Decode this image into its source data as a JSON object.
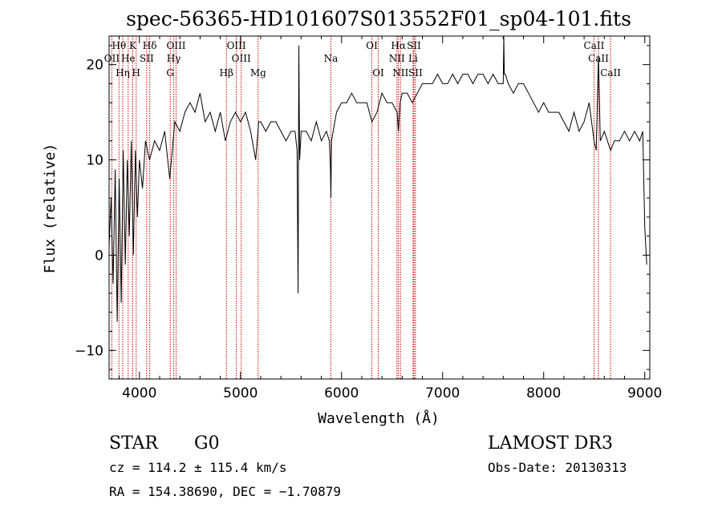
{
  "chart_data": {
    "type": "line",
    "title": "spec-56365-HD101607S013552F01_sp04-101.fits",
    "xlabel": "Wavelength (Å)",
    "ylabel": "Flux (relative)",
    "xlim": [
      3700,
      9050
    ],
    "ylim": [
      -13,
      23
    ],
    "x_ticks": [
      4000,
      5000,
      6000,
      7000,
      8000,
      9000
    ],
    "y_ticks": [
      -10,
      0,
      10,
      20
    ],
    "x_tick_labels": [
      "4000",
      "5000",
      "6000",
      "7000",
      "8000",
      "9000"
    ],
    "y_tick_labels": [
      "−10",
      "0",
      "10",
      "20"
    ],
    "series": [
      {
        "name": "flux",
        "x": [
          3700,
          3720,
          3740,
          3760,
          3780,
          3800,
          3820,
          3840,
          3860,
          3880,
          3900,
          3920,
          3940,
          3960,
          3980,
          4000,
          4030,
          4060,
          4100,
          4150,
          4200,
          4250,
          4300,
          4350,
          4400,
          4450,
          4500,
          4550,
          4600,
          4650,
          4700,
          4750,
          4800,
          4850,
          4900,
          4950,
          5000,
          5050,
          5100,
          5150,
          5180,
          5200,
          5250,
          5300,
          5350,
          5400,
          5450,
          5500,
          5540,
          5560,
          5570,
          5577,
          5585,
          5600,
          5650,
          5700,
          5750,
          5800,
          5850,
          5880,
          5890,
          5895,
          5900,
          5950,
          6000,
          6050,
          6100,
          6150,
          6200,
          6250,
          6300,
          6350,
          6400,
          6450,
          6500,
          6550,
          6563,
          6580,
          6600,
          6650,
          6700,
          6750,
          6800,
          6850,
          6900,
          6950,
          7000,
          7050,
          7100,
          7150,
          7200,
          7250,
          7300,
          7350,
          7400,
          7450,
          7500,
          7550,
          7600,
          7605,
          7610,
          7620,
          7650,
          7700,
          7750,
          7800,
          7850,
          7900,
          7950,
          8000,
          8050,
          8100,
          8150,
          8200,
          8250,
          8300,
          8350,
          8400,
          8450,
          8498,
          8520,
          8542,
          8560,
          8600,
          8662,
          8700,
          8750,
          8800,
          8850,
          8900,
          8950,
          8980,
          9000,
          9020
        ],
        "y": [
          1,
          6,
          -3,
          9,
          -7,
          8,
          -5,
          11,
          -1,
          10,
          2,
          12,
          0,
          11,
          4,
          10,
          7,
          12,
          10,
          12,
          11,
          13,
          8,
          14,
          13,
          15,
          16,
          15,
          17,
          14,
          15,
          13,
          15,
          12,
          14,
          15,
          14,
          15,
          13,
          10,
          14,
          14,
          13,
          14,
          14,
          13,
          12,
          13,
          13,
          11,
          -4,
          22,
          10,
          13,
          13,
          12,
          14,
          12,
          13,
          12,
          9,
          6,
          12,
          15,
          16,
          16,
          17,
          16,
          16,
          16,
          14,
          15,
          17,
          16,
          16,
          15,
          13,
          16,
          17,
          17,
          16,
          17,
          18,
          18,
          18,
          19,
          18,
          18,
          19,
          18,
          19,
          19,
          18,
          19,
          19,
          18,
          19,
          18,
          18,
          23,
          19,
          19,
          18,
          17,
          18,
          18,
          17,
          16,
          15,
          16,
          15,
          15,
          15,
          14,
          13,
          15,
          13,
          14,
          16,
          12,
          11,
          21,
          12,
          13,
          11,
          12,
          12,
          13,
          12,
          13,
          12,
          13,
          3,
          -1
        ]
      }
    ],
    "lines": [
      {
        "label": "Hθ",
        "x": 3798,
        "row": 0
      },
      {
        "label": "OII",
        "x": 3727,
        "row": 1
      },
      {
        "label": "Hη",
        "x": 3835,
        "row": 2
      },
      {
        "label": "He",
        "x": 3889,
        "row": 1
      },
      {
        "label": "K",
        "x": 3934,
        "row": 0
      },
      {
        "label": "SII",
        "x": 4072,
        "row": 1
      },
      {
        "label": "H",
        "x": 3968,
        "row": 2
      },
      {
        "label": "Hδ",
        "x": 4102,
        "row": 0
      },
      {
        "label": "OIII",
        "x": 4363,
        "row": 0
      },
      {
        "label": "Hγ",
        "x": 4340,
        "row": 1
      },
      {
        "label": "G",
        "x": 4305,
        "row": 2
      },
      {
        "label": "Hβ",
        "x": 4861,
        "row": 2
      },
      {
        "label": "OIII",
        "x": 4959,
        "row": 0
      },
      {
        "label": "OIII",
        "x": 5007,
        "row": 1
      },
      {
        "label": "Mg",
        "x": 5175,
        "row": 2
      },
      {
        "label": "Na",
        "x": 5894,
        "row": 1
      },
      {
        "label": "OI",
        "x": 6300,
        "row": 0
      },
      {
        "label": "OI",
        "x": 6363,
        "row": 2
      },
      {
        "label": "Hα",
        "x": 6563,
        "row": 0
      },
      {
        "label": "NII",
        "x": 6548,
        "row": 1
      },
      {
        "label": "NII",
        "x": 6583,
        "row": 2
      },
      {
        "label": "SII",
        "x": 6716,
        "row": 0
      },
      {
        "label": "Li",
        "x": 6708,
        "row": 1
      },
      {
        "label": "SII",
        "x": 6731,
        "row": 2
      },
      {
        "label": "CaII",
        "x": 8498,
        "row": 0
      },
      {
        "label": "CaII",
        "x": 8542,
        "row": 1
      },
      {
        "label": "CaII",
        "x": 8662,
        "row": 2
      }
    ],
    "line_color": "#cc0000"
  },
  "info": {
    "class": "STAR",
    "subclass": "G0",
    "survey": "LAMOST DR3",
    "cz": "cz = 114.2 ± 115.4 km/s",
    "obs_date": "Obs-Date: 20130313",
    "coords": "RA = 154.38690, DEC =  −1.70879"
  }
}
